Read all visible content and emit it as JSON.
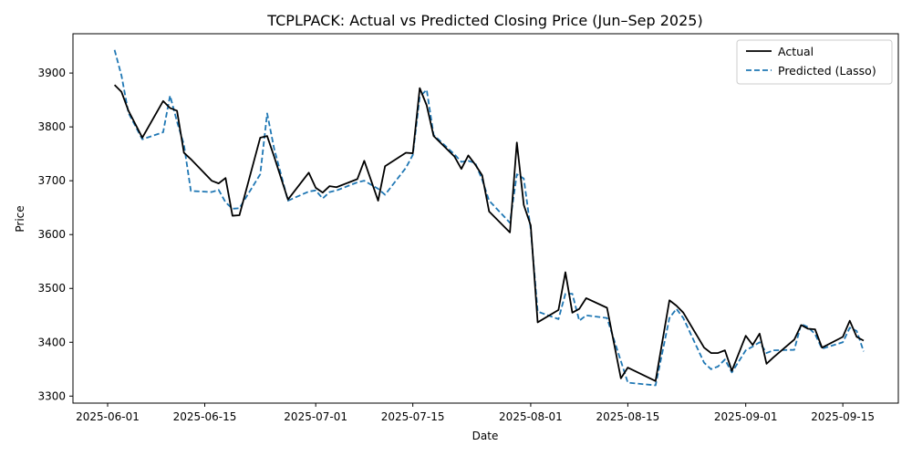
{
  "chart_data": {
    "type": "line",
    "title": "TCPLPACK: Actual vs Predicted Closing Price (Jun–Sep 2025)",
    "xlabel": "Date",
    "ylabel": "Price",
    "xlim": [
      "2025-05-27",
      "2025-09-23"
    ],
    "ylim": [
      3287,
      3973
    ],
    "yticks": [
      3300,
      3400,
      3500,
      3600,
      3700,
      3800,
      3900
    ],
    "xticks": [
      "2025-06-01",
      "2025-06-15",
      "2025-07-01",
      "2025-07-15",
      "2025-08-01",
      "2025-08-15",
      "2025-09-01",
      "2025-09-15"
    ],
    "grid": false,
    "legend_position": "top-right",
    "series": [
      {
        "name": "Actual",
        "color": "#000000",
        "style": "solid",
        "points": [
          [
            "2025-06-02",
            3878
          ],
          [
            "2025-06-03",
            3865
          ],
          [
            "2025-06-04",
            3830
          ],
          [
            "2025-06-06",
            3780
          ],
          [
            "2025-06-09",
            3848
          ],
          [
            "2025-06-10",
            3835
          ],
          [
            "2025-06-11",
            3830
          ],
          [
            "2025-06-12",
            3752
          ],
          [
            "2025-06-13",
            3740
          ],
          [
            "2025-06-16",
            3700
          ],
          [
            "2025-06-17",
            3695
          ],
          [
            "2025-06-18",
            3705
          ],
          [
            "2025-06-19",
            3635
          ],
          [
            "2025-06-20",
            3636
          ],
          [
            "2025-06-23",
            3780
          ],
          [
            "2025-06-24",
            3783
          ],
          [
            "2025-06-25",
            3745
          ],
          [
            "2025-06-27",
            3665
          ],
          [
            "2025-06-30",
            3715
          ],
          [
            "2025-07-01",
            3687
          ],
          [
            "2025-07-02",
            3678
          ],
          [
            "2025-07-03",
            3690
          ],
          [
            "2025-07-04",
            3688
          ],
          [
            "2025-07-07",
            3703
          ],
          [
            "2025-07-08",
            3737
          ],
          [
            "2025-07-10",
            3663
          ],
          [
            "2025-07-11",
            3727
          ],
          [
            "2025-07-14",
            3752
          ],
          [
            "2025-07-15",
            3751
          ],
          [
            "2025-07-16",
            3872
          ],
          [
            "2025-07-17",
            3840
          ],
          [
            "2025-07-18",
            3783
          ],
          [
            "2025-07-21",
            3745
          ],
          [
            "2025-07-22",
            3722
          ],
          [
            "2025-07-23",
            3747
          ],
          [
            "2025-07-24",
            3730
          ],
          [
            "2025-07-25",
            3710
          ],
          [
            "2025-07-26",
            3643
          ],
          [
            "2025-07-29",
            3604
          ],
          [
            "2025-07-30",
            3771
          ],
          [
            "2025-07-31",
            3655
          ],
          [
            "2025-08-01",
            3617
          ],
          [
            "2025-08-02",
            3437
          ],
          [
            "2025-08-05",
            3460
          ],
          [
            "2025-08-06",
            3530
          ],
          [
            "2025-08-07",
            3455
          ],
          [
            "2025-08-08",
            3462
          ],
          [
            "2025-08-09",
            3482
          ],
          [
            "2025-08-12",
            3464
          ],
          [
            "2025-08-14",
            3333
          ],
          [
            "2025-08-15",
            3353
          ],
          [
            "2025-08-19",
            3328
          ],
          [
            "2025-08-21",
            3478
          ],
          [
            "2025-08-22",
            3468
          ],
          [
            "2025-08-23",
            3455
          ],
          [
            "2025-08-26",
            3390
          ],
          [
            "2025-08-27",
            3380
          ],
          [
            "2025-08-28",
            3380
          ],
          [
            "2025-08-29",
            3385
          ],
          [
            "2025-08-30",
            3347
          ],
          [
            "2025-09-01",
            3412
          ],
          [
            "2025-09-02",
            3395
          ],
          [
            "2025-09-03",
            3416
          ],
          [
            "2025-09-04",
            3360
          ],
          [
            "2025-09-05",
            3372
          ],
          [
            "2025-09-08",
            3405
          ],
          [
            "2025-09-09",
            3432
          ],
          [
            "2025-09-10",
            3425
          ],
          [
            "2025-09-11",
            3424
          ],
          [
            "2025-09-12",
            3390
          ],
          [
            "2025-09-15",
            3410
          ],
          [
            "2025-09-16",
            3440
          ],
          [
            "2025-09-17",
            3410
          ],
          [
            "2025-09-18",
            3403
          ]
        ]
      },
      {
        "name": "Predicted (Lasso)",
        "color": "#1f77b4",
        "style": "dashed",
        "points": [
          [
            "2025-06-02",
            3943
          ],
          [
            "2025-06-03",
            3895
          ],
          [
            "2025-06-04",
            3826
          ],
          [
            "2025-06-06",
            3777
          ],
          [
            "2025-06-09",
            3790
          ],
          [
            "2025-06-10",
            3858
          ],
          [
            "2025-06-11",
            3810
          ],
          [
            "2025-06-12",
            3767
          ],
          [
            "2025-06-13",
            3681
          ],
          [
            "2025-06-16",
            3679
          ],
          [
            "2025-06-17",
            3683
          ],
          [
            "2025-06-18",
            3660
          ],
          [
            "2025-06-19",
            3648
          ],
          [
            "2025-06-20",
            3649
          ],
          [
            "2025-06-23",
            3712
          ],
          [
            "2025-06-24",
            3825
          ],
          [
            "2025-06-25",
            3760
          ],
          [
            "2025-06-27",
            3663
          ],
          [
            "2025-06-30",
            3680
          ],
          [
            "2025-07-01",
            3682
          ],
          [
            "2025-07-02",
            3667
          ],
          [
            "2025-07-03",
            3679
          ],
          [
            "2025-07-04",
            3682
          ],
          [
            "2025-07-07",
            3697
          ],
          [
            "2025-07-08",
            3700
          ],
          [
            "2025-07-10",
            3685
          ],
          [
            "2025-07-11",
            3674
          ],
          [
            "2025-07-14",
            3724
          ],
          [
            "2025-07-15",
            3748
          ],
          [
            "2025-07-16",
            3856
          ],
          [
            "2025-07-17",
            3869
          ],
          [
            "2025-07-18",
            3785
          ],
          [
            "2025-07-21",
            3749
          ],
          [
            "2025-07-22",
            3735
          ],
          [
            "2025-07-23",
            3737
          ],
          [
            "2025-07-24",
            3733
          ],
          [
            "2025-07-25",
            3702
          ],
          [
            "2025-07-26",
            3663
          ],
          [
            "2025-07-29",
            3622
          ],
          [
            "2025-07-30",
            3712
          ],
          [
            "2025-07-31",
            3704
          ],
          [
            "2025-08-01",
            3610
          ],
          [
            "2025-08-02",
            3457
          ],
          [
            "2025-08-05",
            3443
          ],
          [
            "2025-08-06",
            3490
          ],
          [
            "2025-08-07",
            3490
          ],
          [
            "2025-08-08",
            3440
          ],
          [
            "2025-08-09",
            3450
          ],
          [
            "2025-08-12",
            3445
          ],
          [
            "2025-08-14",
            3365
          ],
          [
            "2025-08-15",
            3325
          ],
          [
            "2025-08-19",
            3320
          ],
          [
            "2025-08-21",
            3445
          ],
          [
            "2025-08-22",
            3462
          ],
          [
            "2025-08-23",
            3445
          ],
          [
            "2025-08-26",
            3362
          ],
          [
            "2025-08-27",
            3350
          ],
          [
            "2025-08-28",
            3355
          ],
          [
            "2025-08-29",
            3368
          ],
          [
            "2025-08-30",
            3344
          ],
          [
            "2025-09-01",
            3385
          ],
          [
            "2025-09-02",
            3392
          ],
          [
            "2025-09-03",
            3400
          ],
          [
            "2025-09-04",
            3380
          ],
          [
            "2025-09-05",
            3385
          ],
          [
            "2025-09-08",
            3386
          ],
          [
            "2025-09-09",
            3434
          ],
          [
            "2025-09-10",
            3428
          ],
          [
            "2025-09-11",
            3415
          ],
          [
            "2025-09-12",
            3388
          ],
          [
            "2025-09-15",
            3400
          ],
          [
            "2025-09-16",
            3427
          ],
          [
            "2025-09-17",
            3421
          ],
          [
            "2025-09-18",
            3383
          ]
        ]
      }
    ]
  }
}
